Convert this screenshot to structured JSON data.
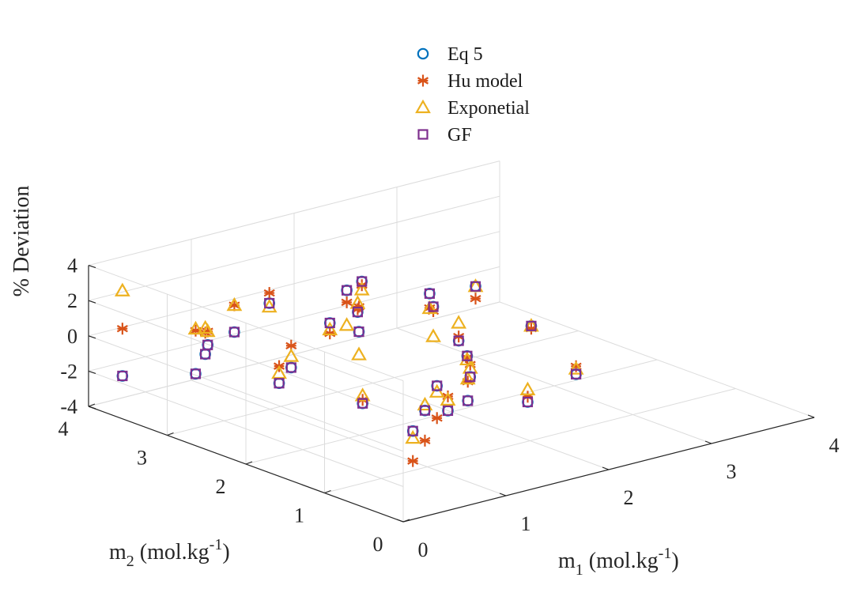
{
  "chart_data": {
    "type": "scatter",
    "projection": "3d",
    "grid": true,
    "legend_position": "top-center",
    "xlabel": {
      "main": "m",
      "sub": "1",
      "rest": " (mol.kg",
      "sup": "-1",
      "end": ")"
    },
    "ylabel": {
      "main": "m",
      "sub": "2",
      "rest": " (mol.kg",
      "sup": "-1",
      "end": ")"
    },
    "zlabel": "% Deviation",
    "xlim": [
      0,
      4
    ],
    "ylim": [
      0,
      4
    ],
    "zlim": [
      -4,
      4
    ],
    "x_ticks": [
      "0",
      "1",
      "2",
      "3",
      "4"
    ],
    "y_ticks": [
      "0",
      "1",
      "2",
      "3",
      "4"
    ],
    "z_ticks": [
      "-4",
      "-2",
      "0",
      "2",
      "4"
    ],
    "series": [
      {
        "name": "Eq 5",
        "marker": "circle",
        "color": "#0072BD",
        "points": [
          [
            0.1,
            3.7,
            -1.93
          ],
          [
            0.2,
            2.9,
            -0.65
          ],
          [
            0.4,
            2.1,
            -0.17
          ],
          [
            0.6,
            1.3,
            -0.3
          ],
          [
            0.5,
            2.8,
            1.44
          ],
          [
            1.1,
            2.0,
            1.88
          ],
          [
            0.4,
            0.4,
            -0.1
          ],
          [
            0.9,
            0.9,
            -0.49
          ],
          [
            1.4,
            1.4,
            -0.65
          ],
          [
            1.2,
            2.5,
            1.41
          ],
          [
            1.9,
            2.1,
            1.95
          ],
          [
            1.3,
            3.4,
            0.91
          ],
          [
            1.9,
            0.9,
            -1.49
          ],
          [
            2.0,
            1.8,
            -0.5
          ],
          [
            2.3,
            2.3,
            -0.9
          ],
          [
            2.7,
            1.9,
            0.0
          ],
          [
            2.4,
            2.8,
            0.81
          ],
          [
            2.2,
            3.4,
            0.81
          ],
          [
            3.0,
            3.0,
            0.0
          ],
          [
            2.6,
            1.2,
            -1.44
          ],
          [
            1.7,
            2.8,
            0.8
          ],
          [
            0.6,
            3.3,
            -0.78
          ],
          [
            1.2,
            1.0,
            -1.11
          ],
          [
            1.9,
            3.2,
            1.08
          ],
          [
            1.7,
            1.4,
            -1.94
          ],
          [
            0.7,
            3.4,
            -0.57
          ],
          [
            0.9,
            2.6,
            -0.84
          ],
          [
            1.8,
            1.5,
            -0.9
          ]
        ]
      },
      {
        "name": "Hu model",
        "marker": "asterisk",
        "color": "#D95319",
        "points": [
          [
            0.1,
            3.7,
            0.75
          ],
          [
            0.2,
            2.9,
            1.8
          ],
          [
            0.4,
            2.1,
            0.8
          ],
          [
            0.6,
            1.3,
            -0.1
          ],
          [
            0.5,
            2.8,
            2.96
          ],
          [
            1.1,
            2.0,
            3.3
          ],
          [
            0.4,
            0.4,
            -1.8
          ],
          [
            0.9,
            0.9,
            -2.2
          ],
          [
            1.4,
            1.4,
            -2.48
          ],
          [
            1.2,
            2.5,
            0.82
          ],
          [
            1.9,
            2.1,
            1.7
          ],
          [
            1.3,
            3.4,
            1.49
          ],
          [
            1.9,
            0.9,
            -1.19
          ],
          [
            2.0,
            1.8,
            -0.6
          ],
          [
            2.3,
            2.3,
            -0.66
          ],
          [
            2.7,
            1.9,
            -0.15
          ],
          [
            2.4,
            2.8,
            0.0
          ],
          [
            2.2,
            3.4,
            0.6
          ],
          [
            3.0,
            3.0,
            -0.69
          ],
          [
            2.6,
            1.2,
            -0.99
          ],
          [
            1.7,
            2.8,
            0.96
          ],
          [
            0.6,
            3.3,
            0.44
          ],
          [
            1.2,
            1.0,
            -0.3
          ],
          [
            1.9,
            3.2,
            0.4
          ],
          [
            1.7,
            1.4,
            -0.86
          ],
          [
            0.7,
            3.4,
            0.2
          ],
          [
            0.9,
            2.6,
            0.4
          ],
          [
            1.8,
            1.5,
            -0.2
          ]
        ]
      },
      {
        "name": "Exponetial",
        "marker": "triangle",
        "color": "#EDB120",
        "points": [
          [
            0.1,
            3.7,
            2.9
          ],
          [
            0.2,
            2.9,
            1.9
          ],
          [
            0.4,
            2.1,
            0.4
          ],
          [
            0.6,
            1.3,
            0.14
          ],
          [
            0.5,
            2.8,
            2.96
          ],
          [
            1.1,
            2.0,
            0.58
          ],
          [
            0.4,
            0.4,
            -0.5
          ],
          [
            0.9,
            0.9,
            -0.17
          ],
          [
            1.4,
            1.4,
            -1.0
          ],
          [
            1.2,
            2.5,
            1.03
          ],
          [
            1.9,
            2.1,
            0.26
          ],
          [
            1.3,
            3.4,
            0.7
          ],
          [
            1.9,
            0.9,
            -0.79
          ],
          [
            2.0,
            1.8,
            -0.71
          ],
          [
            2.3,
            2.3,
            0.11
          ],
          [
            2.7,
            1.9,
            0.0
          ],
          [
            2.4,
            2.8,
            -0.03
          ],
          [
            2.2,
            3.4,
            0.34
          ],
          [
            3.0,
            3.0,
            0.0
          ],
          [
            2.6,
            1.2,
            -1.14
          ],
          [
            1.7,
            2.8,
            1.3
          ],
          [
            0.6,
            3.3,
            0.7
          ],
          [
            1.2,
            1.0,
            -0.5
          ],
          [
            1.9,
            3.2,
            -0.9
          ],
          [
            1.7,
            1.4,
            -0.7
          ],
          [
            0.7,
            3.4,
            0.2
          ],
          [
            0.9,
            2.6,
            -0.2
          ],
          [
            1.8,
            1.5,
            -0.4
          ]
        ]
      },
      {
        "name": "GF",
        "marker": "square",
        "color": "#7E2F8E",
        "points": [
          [
            0.1,
            3.7,
            -1.93
          ],
          [
            0.2,
            2.9,
            -0.65
          ],
          [
            0.4,
            2.1,
            -0.17
          ],
          [
            0.6,
            1.3,
            -0.3
          ],
          [
            0.5,
            2.8,
            1.44
          ],
          [
            1.1,
            2.0,
            1.88
          ],
          [
            0.4,
            0.4,
            -0.1
          ],
          [
            0.9,
            0.9,
            -0.49
          ],
          [
            1.4,
            1.4,
            -0.65
          ],
          [
            1.2,
            2.5,
            1.41
          ],
          [
            1.9,
            2.1,
            1.95
          ],
          [
            1.3,
            3.4,
            0.91
          ],
          [
            1.9,
            0.9,
            -1.49
          ],
          [
            2.0,
            1.8,
            -0.5
          ],
          [
            2.3,
            2.3,
            -0.9
          ],
          [
            2.7,
            1.9,
            0.0
          ],
          [
            2.4,
            2.8,
            0.81
          ],
          [
            2.2,
            3.4,
            0.81
          ],
          [
            3.0,
            3.0,
            0.0
          ],
          [
            2.6,
            1.2,
            -1.44
          ],
          [
            1.7,
            2.8,
            0.8
          ],
          [
            0.6,
            3.3,
            -0.78
          ],
          [
            1.2,
            1.0,
            -1.11
          ],
          [
            1.9,
            3.2,
            1.08
          ],
          [
            1.7,
            1.4,
            -1.94
          ],
          [
            0.7,
            3.4,
            -0.57
          ],
          [
            0.9,
            2.6,
            -0.84
          ],
          [
            1.8,
            1.5,
            -0.9
          ]
        ]
      }
    ]
  }
}
